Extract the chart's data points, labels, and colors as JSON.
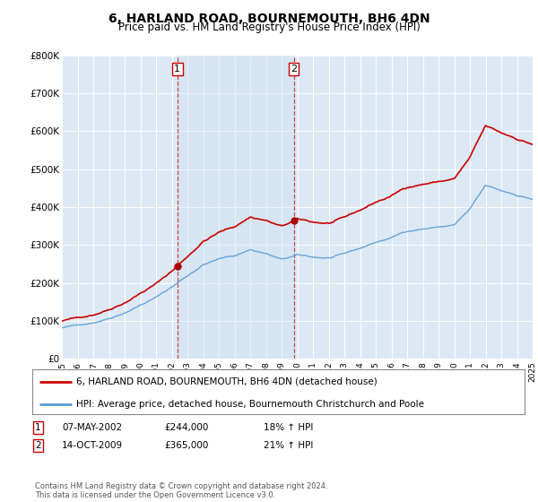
{
  "title": "6, HARLAND ROAD, BOURNEMOUTH, BH6 4DN",
  "subtitle": "Price paid vs. HM Land Registry's House Price Index (HPI)",
  "plot_bg_color": "#dce9f5",
  "fig_bg_color": "#ffffff",
  "shade_color": "#c8dff0",
  "ylim": [
    0,
    800000
  ],
  "yticks": [
    0,
    100000,
    200000,
    300000,
    400000,
    500000,
    600000,
    700000,
    800000
  ],
  "ytick_labels": [
    "£0",
    "£100K",
    "£200K",
    "£300K",
    "£400K",
    "£500K",
    "£600K",
    "£700K",
    "£800K"
  ],
  "xlim_start": 1995,
  "xlim_end": 2025,
  "sale1_x": 2002.36,
  "sale1_y": 244000,
  "sale2_x": 2009.78,
  "sale2_y": 365000,
  "legend_line1": "6, HARLAND ROAD, BOURNEMOUTH, BH6 4DN (detached house)",
  "legend_line2": "HPI: Average price, detached house, Bournemouth Christchurch and Poole",
  "table_row1": [
    "1",
    "07-MAY-2002",
    "£244,000",
    "18% ↑ HPI"
  ],
  "table_row2": [
    "2",
    "14-OCT-2009",
    "£365,000",
    "21% ↑ HPI"
  ],
  "footer": "Contains HM Land Registry data © Crown copyright and database right 2024.\nThis data is licensed under the Open Government Licence v3.0.",
  "hpi_color": "#5b9bd5",
  "price_color": "#cc0000",
  "marker_color": "#aa0000",
  "dashed_color": "#cc0000",
  "grid_color": "#ffffff",
  "label_box_color": "#cc0000"
}
